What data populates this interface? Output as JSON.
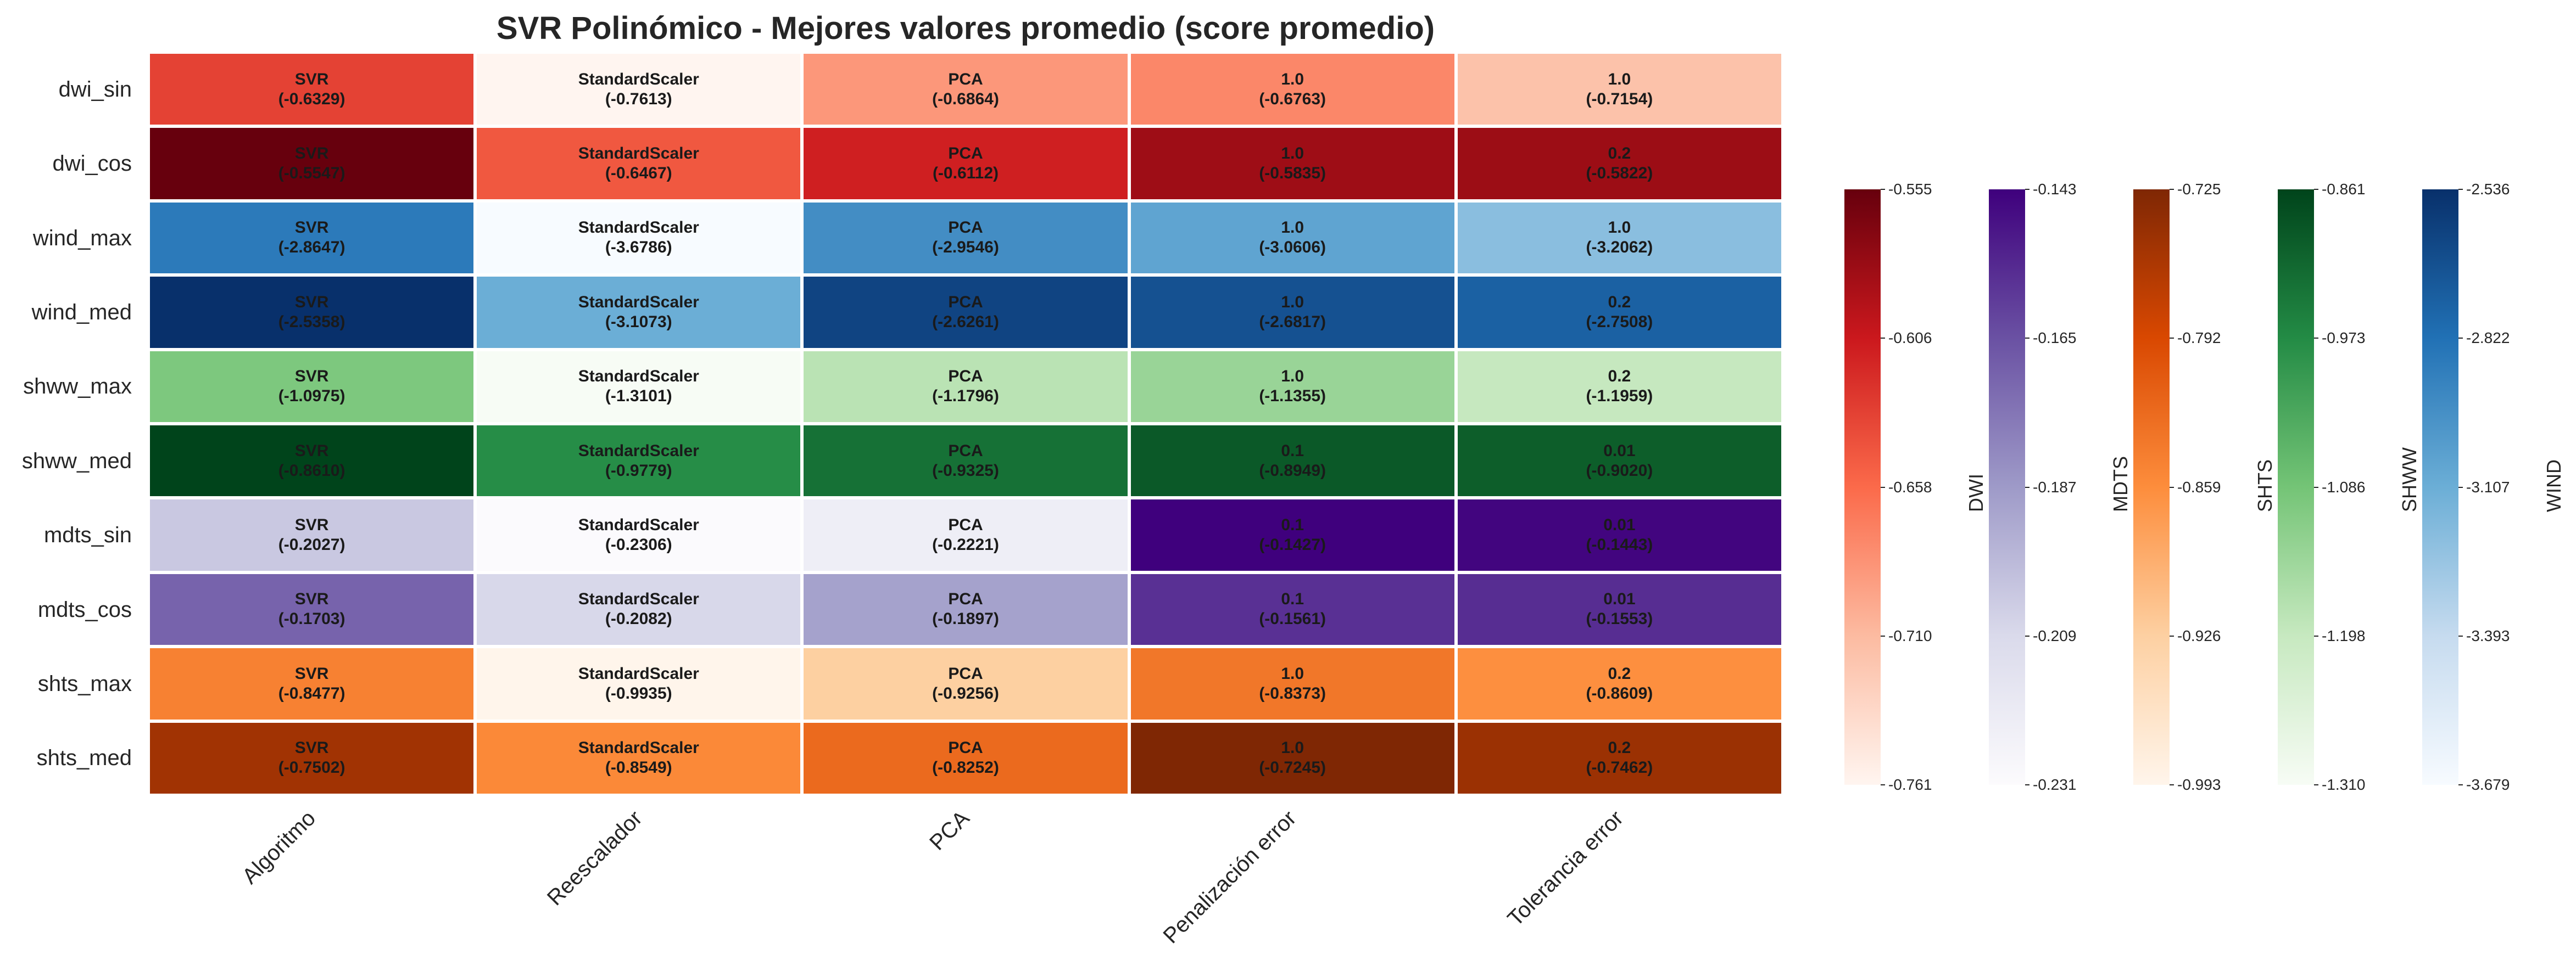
{
  "chart_data": {
    "type": "heatmap",
    "title": "SVR Polinómico - Mejores valores promedio (score promedio)",
    "rows": [
      "dwi_sin",
      "dwi_cos",
      "wind_max",
      "wind_med",
      "shww_max",
      "shww_med",
      "mdts_sin",
      "mdts_cos",
      "shts_max",
      "shts_med"
    ],
    "columns": [
      "Algoritmo",
      "Reescalador",
      "PCA",
      "Penalización error",
      "Tolerancia error"
    ],
    "row_group": [
      "DWI",
      "DWI",
      "WIND",
      "WIND",
      "SHWW",
      "SHWW",
      "MDTS",
      "MDTS",
      "SHTS",
      "SHTS"
    ],
    "cells": [
      [
        {
          "label": "SVR",
          "score": "(-0.6329)",
          "value": -0.6329
        },
        {
          "label": "StandardScaler",
          "score": "(-0.7613)",
          "value": -0.7613
        },
        {
          "label": "PCA",
          "score": "(-0.6864)",
          "value": -0.6864
        },
        {
          "label": "1.0",
          "score": "(-0.6763)",
          "value": -0.6763
        },
        {
          "label": "1.0",
          "score": "(-0.7154)",
          "value": -0.7154
        }
      ],
      [
        {
          "label": "SVR",
          "score": "(-0.5547)",
          "value": -0.5547
        },
        {
          "label": "StandardScaler",
          "score": "(-0.6467)",
          "value": -0.6467
        },
        {
          "label": "PCA",
          "score": "(-0.6112)",
          "value": -0.6112
        },
        {
          "label": "1.0",
          "score": "(-0.5835)",
          "value": -0.5835
        },
        {
          "label": "0.2",
          "score": "(-0.5822)",
          "value": -0.5822
        }
      ],
      [
        {
          "label": "SVR",
          "score": "(-2.8647)",
          "value": -2.8647
        },
        {
          "label": "StandardScaler",
          "score": "(-3.6786)",
          "value": -3.6786
        },
        {
          "label": "PCA",
          "score": "(-2.9546)",
          "value": -2.9546
        },
        {
          "label": "1.0",
          "score": "(-3.0606)",
          "value": -3.0606
        },
        {
          "label": "1.0",
          "score": "(-3.2062)",
          "value": -3.2062
        }
      ],
      [
        {
          "label": "SVR",
          "score": "(-2.5358)",
          "value": -2.5358
        },
        {
          "label": "StandardScaler",
          "score": "(-3.1073)",
          "value": -3.1073
        },
        {
          "label": "PCA",
          "score": "(-2.6261)",
          "value": -2.6261
        },
        {
          "label": "1.0",
          "score": "(-2.6817)",
          "value": -2.6817
        },
        {
          "label": "0.2",
          "score": "(-2.7508)",
          "value": -2.7508
        }
      ],
      [
        {
          "label": "SVR",
          "score": "(-1.0975)",
          "value": -1.0975
        },
        {
          "label": "StandardScaler",
          "score": "(-1.3101)",
          "value": -1.3101
        },
        {
          "label": "PCA",
          "score": "(-1.1796)",
          "value": -1.1796
        },
        {
          "label": "1.0",
          "score": "(-1.1355)",
          "value": -1.1355
        },
        {
          "label": "0.2",
          "score": "(-1.1959)",
          "value": -1.1959
        }
      ],
      [
        {
          "label": "SVR",
          "score": "(-0.8610)",
          "value": -0.861
        },
        {
          "label": "StandardScaler",
          "score": "(-0.9779)",
          "value": -0.9779
        },
        {
          "label": "PCA",
          "score": "(-0.9325)",
          "value": -0.9325
        },
        {
          "label": "0.1",
          "score": "(-0.8949)",
          "value": -0.8949
        },
        {
          "label": "0.01",
          "score": "(-0.9020)",
          "value": -0.902
        }
      ],
      [
        {
          "label": "SVR",
          "score": "(-0.2027)",
          "value": -0.2027
        },
        {
          "label": "StandardScaler",
          "score": "(-0.2306)",
          "value": -0.2306
        },
        {
          "label": "PCA",
          "score": "(-0.2221)",
          "value": -0.2221
        },
        {
          "label": "0.1",
          "score": "(-0.1427)",
          "value": -0.1427
        },
        {
          "label": "0.01",
          "score": "(-0.1443)",
          "value": -0.1443
        }
      ],
      [
        {
          "label": "SVR",
          "score": "(-0.1703)",
          "value": -0.1703
        },
        {
          "label": "StandardScaler",
          "score": "(-0.2082)",
          "value": -0.2082
        },
        {
          "label": "PCA",
          "score": "(-0.1897)",
          "value": -0.1897
        },
        {
          "label": "0.1",
          "score": "(-0.1561)",
          "value": -0.1561
        },
        {
          "label": "0.01",
          "score": "(-0.1553)",
          "value": -0.1553
        }
      ],
      [
        {
          "label": "SVR",
          "score": "(-0.8477)",
          "value": -0.8477
        },
        {
          "label": "StandardScaler",
          "score": "(-0.9935)",
          "value": -0.9935
        },
        {
          "label": "PCA",
          "score": "(-0.9256)",
          "value": -0.9256
        },
        {
          "label": "1.0",
          "score": "(-0.8373)",
          "value": -0.8373
        },
        {
          "label": "0.2",
          "score": "(-0.8609)",
          "value": -0.8609
        }
      ],
      [
        {
          "label": "SVR",
          "score": "(-0.7502)",
          "value": -0.7502
        },
        {
          "label": "StandardScaler",
          "score": "(-0.8549)",
          "value": -0.8549
        },
        {
          "label": "PCA",
          "score": "(-0.8252)",
          "value": -0.8252
        },
        {
          "label": "1.0",
          "score": "(-0.7245)",
          "value": -0.7245
        },
        {
          "label": "0.2",
          "score": "(-0.7462)",
          "value": -0.7462
        }
      ]
    ],
    "colorbars": [
      {
        "label": "DWI",
        "cmap": "reds",
        "range": [
          -0.761,
          -0.555
        ],
        "ticks": [
          "-0.555",
          "-0.606",
          "-0.658",
          "-0.710",
          "-0.761"
        ]
      },
      {
        "label": "MDTS",
        "cmap": "purples",
        "range": [
          -0.231,
          -0.143
        ],
        "ticks": [
          "-0.143",
          "-0.165",
          "-0.187",
          "-0.209",
          "-0.231"
        ]
      },
      {
        "label": "SHTS",
        "cmap": "oranges",
        "range": [
          -0.993,
          -0.725
        ],
        "ticks": [
          "-0.725",
          "-0.792",
          "-0.859",
          "-0.926",
          "-0.993"
        ]
      },
      {
        "label": "SHWW",
        "cmap": "greens",
        "range": [
          -1.31,
          -0.861
        ],
        "ticks": [
          "-0.861",
          "-0.973",
          "-1.086",
          "-1.198",
          "-1.310"
        ]
      },
      {
        "label": "WIND",
        "cmap": "blues",
        "range": [
          -3.679,
          -2.536
        ],
        "ticks": [
          "-2.536",
          "-2.822",
          "-3.107",
          "-3.393",
          "-3.679"
        ]
      }
    ],
    "colormaps": {
      "reds": [
        "#fff5f0",
        "#fcbba1",
        "#fb6a4a",
        "#cb181d",
        "#67000d"
      ],
      "purples": [
        "#fcfbfd",
        "#dadaeb",
        "#9e9ac8",
        "#6a51a3",
        "#3f007d"
      ],
      "oranges": [
        "#fff5eb",
        "#fdd0a2",
        "#fd8d3c",
        "#d94801",
        "#7f2704"
      ],
      "greens": [
        "#f7fcf5",
        "#c7e9c0",
        "#74c476",
        "#238b45",
        "#00441b"
      ],
      "blues": [
        "#f7fbff",
        "#c6dbef",
        "#6baed6",
        "#2171b5",
        "#08306b"
      ]
    },
    "grid": false,
    "legend_placement": "right"
  }
}
